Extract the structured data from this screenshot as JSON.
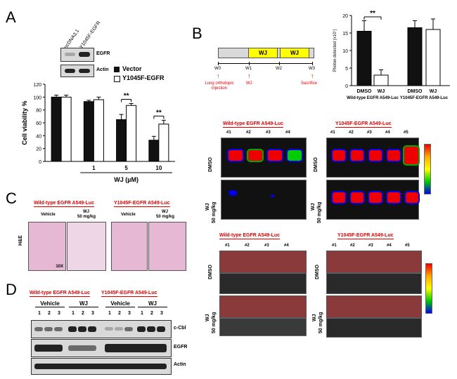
{
  "panelA": {
    "label": "A",
    "lanes": [
      "pcDNA3.1",
      "Y1045F-EGFR"
    ],
    "blot_labels": [
      "EGFR",
      "Actin"
    ],
    "legend": [
      "Vector",
      "Y1045F-EGFR"
    ],
    "sig": "**",
    "ylabel": "Cell viability %",
    "xlabel": "WJ (µM)"
  },
  "panelB": {
    "label": "B",
    "timeline_bars": [
      "WJ",
      "WJ"
    ],
    "timeline_weeks": [
      "W0",
      "W1",
      "W2",
      "W3"
    ],
    "timeline_events": [
      "Lung orthotopic injection",
      "WJ",
      "Sacrifice"
    ],
    "wt_title": "Wild-type EGFR A549-Luc",
    "mut_title": "Y1045F-EGFR A549-Luc",
    "wt_ids": [
      "#1",
      "#2",
      "#3",
      "#4"
    ],
    "mut_ids": [
      "#1",
      "#2",
      "#3",
      "#4",
      "#5"
    ],
    "row_dmso": "DMSO",
    "row_wj": "WJ",
    "row_wj_dose": "50 mg/kg"
  },
  "panelC": {
    "label": "C",
    "wt_title": "Wild-type EGFR A549-Luc",
    "mut_title": "Y1045F-EGFR A549-Luc",
    "vehicle": "Vehicle",
    "wj": "WJ",
    "dose": "50 mg/kg",
    "stain": "H&E",
    "mag": "10X"
  },
  "panelD": {
    "label": "D",
    "wt_title": "Wild-type EGFR A549-Luc",
    "mut_title": "Y1045F-EGFR A549-Luc",
    "vehicle": "Vehicle",
    "wj": "WJ",
    "lanes": [
      "1",
      "2",
      "3",
      "1",
      "2",
      "3",
      "1",
      "2",
      "3",
      "1",
      "2",
      "3"
    ],
    "blots": [
      "c-Cbl",
      "EGFR",
      "Actin"
    ]
  },
  "chart_data": [
    {
      "type": "bar",
      "panel": "A",
      "categories": [
        "",
        "1",
        "5",
        "10"
      ],
      "series": [
        {
          "name": "Vector",
          "values": [
            100,
            93,
            65,
            33
          ],
          "errors": [
            3,
            2,
            8,
            6
          ]
        },
        {
          "name": "Y1045F-EGFR",
          "values": [
            100,
            96,
            87,
            58
          ],
          "errors": [
            3,
            4,
            3,
            6
          ]
        }
      ],
      "ylabel": "Cell viability %",
      "xlabel": "WJ (µM)",
      "ylim": [
        0,
        120
      ],
      "yticks": [
        0,
        20,
        40,
        60,
        80,
        100,
        120
      ],
      "colors": [
        "#111111",
        "#ffffff"
      ],
      "significance": [
        {
          "category": "5",
          "text": "**"
        },
        {
          "category": "10",
          "text": "**"
        }
      ]
    },
    {
      "type": "bar",
      "panel": "B",
      "categories": [
        "DMSO",
        "WJ",
        "DMSO",
        "WJ"
      ],
      "groups": [
        "Wild-type EGFR A549-Luc",
        "Y1045F-EGFR A549-Luc"
      ],
      "values": [
        15.5,
        3,
        16.5,
        16
      ],
      "errors": [
        3,
        1.5,
        2,
        3
      ],
      "colors": [
        "#111111",
        "#ffffff",
        "#111111",
        "#ffffff"
      ],
      "ylabel": "Photon detected (x10⁷)",
      "ylim": [
        0,
        20
      ],
      "yticks": [
        0,
        5,
        10,
        15,
        20
      ],
      "significance": [
        {
          "between": [
            "DMSO",
            "WJ"
          ],
          "group": "Wild-type EGFR A549-Luc",
          "text": "**"
        }
      ]
    }
  ]
}
